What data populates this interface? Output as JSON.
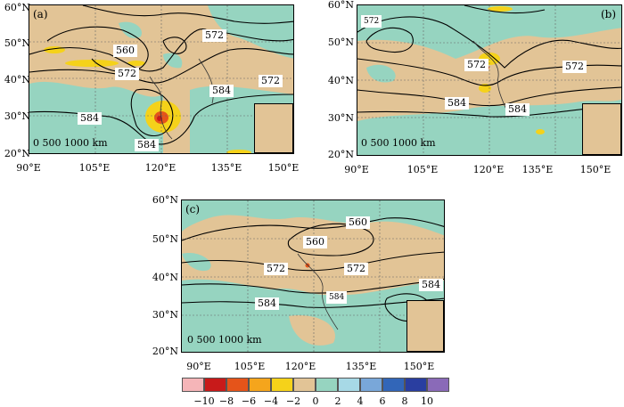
{
  "panels": [
    {
      "label": "(a)",
      "x_ticks": [
        "90°E",
        "105°E",
        "120°E",
        "135°E",
        "150°E"
      ],
      "y_ticks": [
        "60°N",
        "50°N",
        "40°N",
        "30°N",
        "20°N"
      ],
      "contours": [
        "560",
        "572",
        "572",
        "572",
        "584",
        "584",
        "584"
      ],
      "scale_text": "0  500 1000  km"
    },
    {
      "label": "(b)",
      "x_ticks": [
        "90°E",
        "105°E",
        "120°E",
        "135°E",
        "150°E"
      ],
      "y_ticks": [
        "60°N",
        "50°N",
        "40°N",
        "30°N",
        "20°N"
      ],
      "contours": [
        "572",
        "572",
        "572",
        "584",
        "584"
      ],
      "scale_text": "0  500 1000  km"
    },
    {
      "label": "(c)",
      "x_ticks": [
        "90°E",
        "105°E",
        "120°E",
        "135°E",
        "150°E"
      ],
      "y_ticks": [
        "60°N",
        "50°N",
        "40°N",
        "30°N",
        "20°N"
      ],
      "contours": [
        "560",
        "560",
        "572",
        "572",
        "584",
        "584",
        "584"
      ],
      "scale_text": "0  500 1000  km"
    }
  ],
  "colorbar": {
    "labels": [
      "−10",
      "−8",
      "−6",
      "−4",
      "−2",
      "0",
      "2",
      "4",
      "6",
      "8",
      "10"
    ],
    "colors": [
      "#f5b5b8",
      "#c81a1a",
      "#e5541a",
      "#f5a51c",
      "#f5d21a",
      "#e2c496",
      "#96d4c0",
      "#a7d9e6",
      "#79a7d9",
      "#3266b8",
      "#2a3ea0",
      "#8a6ab8"
    ]
  },
  "map_colors": {
    "land": "#e2c496",
    "positive": "#96d4c0",
    "negative": "#f5d21a",
    "strong_negative": "#e5541a"
  }
}
